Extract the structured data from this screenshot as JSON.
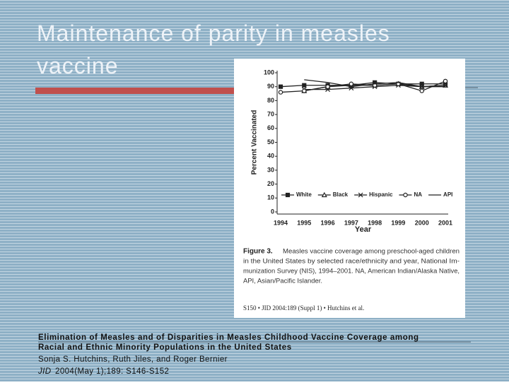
{
  "slide": {
    "title": "Maintenance of parity in measles vaccine"
  },
  "chart_data": {
    "type": "line",
    "x_label": "Year",
    "y_label": "Percent Vaccinated",
    "categories": [
      "1994",
      "1995",
      "1996",
      "1997",
      "1998",
      "1999",
      "2000",
      "2001"
    ],
    "series": [
      {
        "name": "White",
        "color": "#222222",
        "marker": "square",
        "values": [
          90,
          91,
          91,
          91,
          93,
          92,
          92,
          92
        ]
      },
      {
        "name": "Black",
        "color": "#222222",
        "marker": "triangle",
        "values": [
          null,
          87,
          90,
          91,
          91,
          92,
          90,
          91
        ]
      },
      {
        "name": "Hispanic",
        "color": "#222222",
        "marker": "x",
        "values": [
          null,
          88,
          88,
          89,
          90,
          91,
          90,
          91
        ]
      },
      {
        "name": "NA",
        "color": "#222222",
        "marker": "circle",
        "values": [
          86,
          87,
          90,
          92,
          91,
          92,
          87,
          94
        ]
      },
      {
        "name": "API",
        "color": "#222222",
        "marker": "none",
        "values": [
          null,
          95,
          93,
          90,
          92,
          93,
          90,
          90
        ]
      }
    ],
    "ylim": [
      0,
      100
    ],
    "yticks": [
      0,
      10,
      20,
      30,
      40,
      50,
      60,
      70,
      80,
      90,
      100
    ],
    "grid": false,
    "legend": "lower center"
  },
  "figure": {
    "label": "Figure 3.",
    "caption": [
      "Measles vaccine coverage among preschool-aged children",
      "in the United States by selected race/ethnicity and year, National Im-",
      "munization Survey (NIS), 1994–2001. NA, American Indian/Alaska Native,",
      "API, Asian/Pacific Islander."
    ],
    "running_head": "S150 • JID 2004:189 (Suppl 1) • Hutchins et al."
  },
  "citation": {
    "title_lines": [
      "Elimination of Measles and of Disparities in Measles Childhood Vaccine Coverage among",
      "Racial and Ethnic Minority Populations in the United States"
    ],
    "authors": "Sonja S. Hutchins, Ruth Jiles, and Roger Bernier",
    "journal": "JID",
    "details": " 2004(May 1);189: S146-S152"
  }
}
